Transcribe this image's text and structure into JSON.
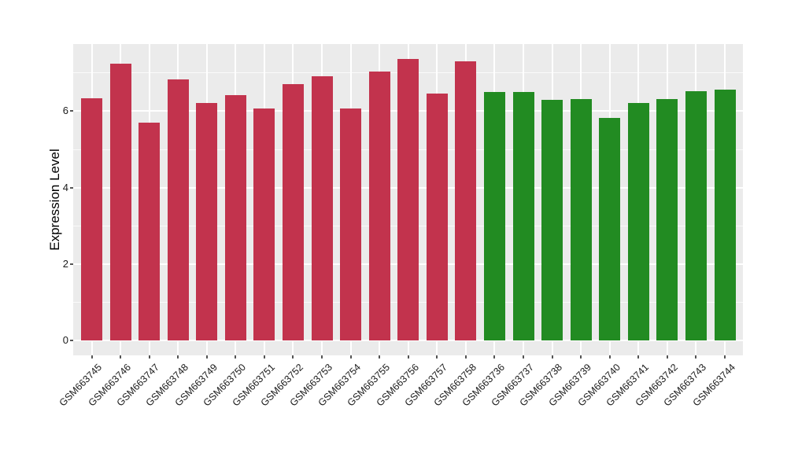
{
  "chart_data": {
    "type": "bar",
    "title": "",
    "xlabel": "",
    "ylabel": "Expression Level",
    "ylim": [
      -0.39,
      7.76
    ],
    "yticks": [
      0,
      2,
      4,
      6
    ],
    "yminorticks": [
      1,
      3,
      5,
      7
    ],
    "grid": "ggplot-style: gray panel, white horizontal major gridlines at yticks, thinner white minor gridlines, white vertical gridlines at each category center",
    "legend_position": "none",
    "categories": [
      "GSM663745",
      "GSM663746",
      "GSM663747",
      "GSM663748",
      "GSM663749",
      "GSM663750",
      "GSM663751",
      "GSM663752",
      "GSM663753",
      "GSM663754",
      "GSM663755",
      "GSM663756",
      "GSM663757",
      "GSM663758",
      "GSM663736",
      "GSM663737",
      "GSM663738",
      "GSM663739",
      "GSM663740",
      "GSM663741",
      "GSM663742",
      "GSM663743",
      "GSM663744"
    ],
    "values": [
      6.33,
      7.24,
      5.69,
      6.84,
      6.21,
      6.42,
      6.08,
      6.71,
      6.92,
      6.08,
      7.03,
      7.37,
      6.46,
      7.3,
      6.51,
      6.5,
      6.29,
      6.32,
      5.82,
      6.21,
      6.32,
      6.52,
      6.56
    ],
    "groups": [
      "red",
      "red",
      "red",
      "red",
      "red",
      "red",
      "red",
      "red",
      "red",
      "red",
      "red",
      "red",
      "red",
      "red",
      "green",
      "green",
      "green",
      "green",
      "green",
      "green",
      "green",
      "green",
      "green"
    ],
    "group_colors": {
      "red": "#C2334D",
      "green": "#228B22"
    },
    "panel_bg": "#EBEBEB",
    "gridline_color": "#FFFFFF"
  }
}
